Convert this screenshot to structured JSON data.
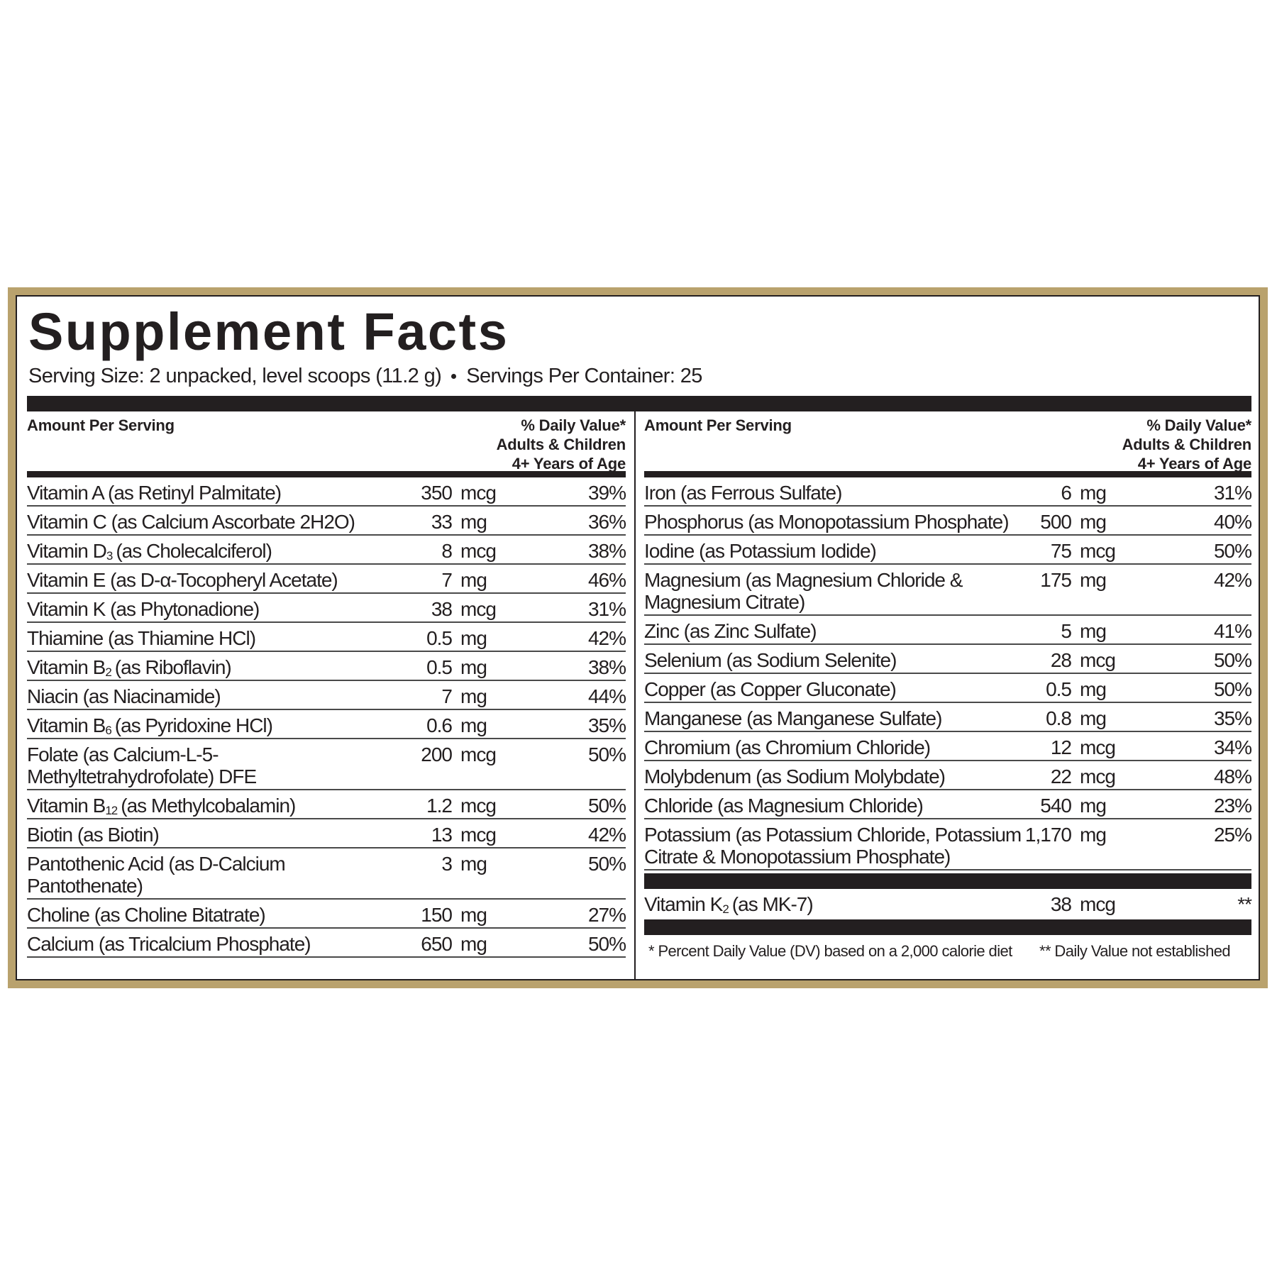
{
  "header": {
    "title": "Supplement Facts",
    "serving_size": "Serving Size: 2 unpacked, level scoops (11.2 g)",
    "servings_per_container": "Servings Per Container: 25"
  },
  "left_panel": {
    "header": {
      "amount_per_serving": "Amount Per Serving",
      "daily_value": [
        "% Daily Value*",
        "Adults & Children",
        "4+ Years of Age"
      ]
    },
    "rows": [
      {
        "name": "Vitamin A (as Retinyl Palmitate)",
        "amount": "350",
        "unit": "mcg",
        "dv": "39%"
      },
      {
        "name": "Vitamin C (as Calcium Ascorbate 2H2O)",
        "amount": "33",
        "unit": "mg",
        "dv": "36%"
      },
      {
        "name": "Vitamin D",
        "sub": "3",
        "rest": "(as Cholecalciferol)",
        "amount": "8",
        "unit": "mcg",
        "dv": "38%"
      },
      {
        "name": "Vitamin E (as D-α-Tocopheryl Acetate)",
        "amount": "7",
        "unit": "mg",
        "dv": "46%"
      },
      {
        "name": "Vitamin K (as Phytonadione)",
        "amount": "38",
        "unit": "mcg",
        "dv": "31%"
      },
      {
        "name": "Thiamine (as Thiamine HCl)",
        "amount": "0.5",
        "unit": "mg",
        "dv": "42%"
      },
      {
        "name": "Vitamin B",
        "sub": "2",
        "rest": "(as Riboflavin)",
        "amount": "0.5",
        "unit": "mg",
        "dv": "38%"
      },
      {
        "name": "Niacin (as Niacinamide)",
        "amount": "7",
        "unit": "mg",
        "dv": "44%"
      },
      {
        "name": "Vitamin B",
        "sub": "6",
        "rest": "(as Pyridoxine HCl)",
        "amount": "0.6",
        "unit": "mg",
        "dv": "35%"
      },
      {
        "name": "Folate (as Calcium-L-5-Methyltetrahydrofolate) DFE",
        "amount": "200",
        "unit": "mcg",
        "dv": "50%"
      },
      {
        "name": "Vitamin B",
        "sub": "12",
        "rest": "(as Methylcobalamin)",
        "amount": "1.2",
        "unit": "mcg",
        "dv": "50%"
      },
      {
        "name": "Biotin (as Biotin)",
        "amount": "13",
        "unit": "mcg",
        "dv": "42%"
      },
      {
        "name": "Pantothenic Acid (as D-Calcium Pantothenate)",
        "amount": "3",
        "unit": "mg",
        "dv": "50%"
      },
      {
        "name": "Choline (as Choline Bitatrate)",
        "amount": "150",
        "unit": "mg",
        "dv": "27%"
      },
      {
        "name": "Calcium (as Tricalcium Phosphate)",
        "amount": "650",
        "unit": "mg",
        "dv": "50%"
      }
    ]
  },
  "right_panel": {
    "header": {
      "amount_per_serving": "Amount Per Serving",
      "daily_value": [
        "% Daily Value*",
        "Adults & Children",
        "4+ Years of Age"
      ]
    },
    "rows": [
      {
        "name": "Iron (as Ferrous Sulfate)",
        "amount": "6",
        "unit": "mg",
        "dv": "31%"
      },
      {
        "name": "Phosphorus (as Monopotassium Phosphate)",
        "amount": "500",
        "unit": "mg",
        "dv": "40%"
      },
      {
        "name": "Iodine (as Potassium Iodide)",
        "amount": "75",
        "unit": "mcg",
        "dv": "50%"
      },
      {
        "name": "Magnesium (as Magnesium Chloride & Magnesium Citrate)",
        "amount": "175",
        "unit": "mg",
        "dv": "42%"
      },
      {
        "name": "Zinc (as Zinc Sulfate)",
        "amount": "5",
        "unit": "mg",
        "dv": "41%"
      },
      {
        "name": "Selenium (as Sodium Selenite)",
        "amount": "28",
        "unit": "mcg",
        "dv": "50%"
      },
      {
        "name": "Copper (as Copper Gluconate)",
        "amount": "0.5",
        "unit": "mg",
        "dv": "50%"
      },
      {
        "name": "Manganese (as Manganese Sulfate)",
        "amount": "0.8",
        "unit": "mg",
        "dv": "35%"
      },
      {
        "name": "Chromium (as Chromium Chloride)",
        "amount": "12",
        "unit": "mcg",
        "dv": "34%"
      },
      {
        "name": "Molybdenum (as Sodium Molybdate)",
        "amount": "22",
        "unit": "mcg",
        "dv": "48%"
      },
      {
        "name": "Chloride (as Magnesium Chloride)",
        "amount": "540",
        "unit": "mg",
        "dv": "23%"
      },
      {
        "name": "Potassium (as Potassium Chloride, Potassium Citrate & Monopotassium Phosphate)",
        "amount": "1,170",
        "unit": "mg",
        "dv": "25%"
      }
    ],
    "other_rows": [
      {
        "name": "Vitamin K",
        "sub": "2",
        "rest": "(as MK-7)",
        "amount": "38",
        "unit": "mcg",
        "dv": "**"
      }
    ],
    "footnotes": [
      "*  Percent Daily Value (DV) based on a 2,000 calorie diet",
      "** Daily Value not established"
    ]
  }
}
